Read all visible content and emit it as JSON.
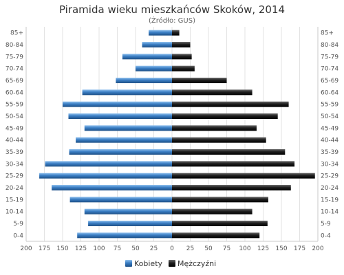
{
  "chart_data": {
    "type": "bar",
    "orientation": "horizontal",
    "title": "Piramida wieku mieszkańców Skoków, 2014",
    "subtitle": "(Źródło: GUS)",
    "categories": [
      "85+",
      "80-84",
      "75-79",
      "70-74",
      "65-69",
      "60-64",
      "55-59",
      "50-54",
      "45-49",
      "40-44",
      "35-39",
      "30-34",
      "25-29",
      "20-24",
      "15-19",
      "10-14",
      "5-9",
      "0-4"
    ],
    "series": [
      {
        "name": "Kobiety",
        "values": [
          32,
          41,
          68,
          50,
          77,
          123,
          150,
          142,
          120,
          132,
          141,
          174,
          182,
          165,
          140,
          120,
          115,
          130
        ],
        "color": "#3a7ec4"
      },
      {
        "name": "Mężczyźni",
        "values": [
          10,
          25,
          27,
          31,
          75,
          110,
          160,
          145,
          116,
          129,
          155,
          168,
          196,
          163,
          132,
          110,
          131,
          120
        ],
        "color": "#1e1e1e"
      }
    ],
    "x_ticks": [
      "200",
      "175",
      "150",
      "125",
      "100",
      "75",
      "50",
      "25",
      "0",
      "25",
      "50",
      "75",
      "100",
      "125",
      "150",
      "175",
      "200"
    ],
    "xlim": [
      -200,
      200
    ],
    "grid": true,
    "legend_position": "bottom"
  }
}
